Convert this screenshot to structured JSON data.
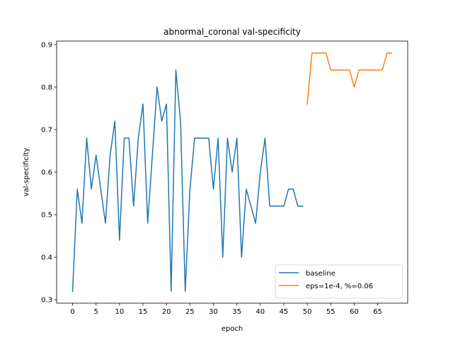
{
  "chart_data": {
    "type": "line",
    "title": "abnormal_coronal val-specificity",
    "xlabel": "epoch",
    "ylabel": "val-specificity",
    "xlim": [
      -3.4,
      71.4
    ],
    "ylim": [
      0.292,
      0.908
    ],
    "xticks": [
      0,
      5,
      10,
      15,
      20,
      25,
      30,
      35,
      40,
      45,
      50,
      55,
      60,
      65
    ],
    "yticks": [
      0.3,
      0.4,
      0.5,
      0.6,
      0.7,
      0.8,
      0.9
    ],
    "ytick_labels": [
      "0.3",
      "0.4",
      "0.5",
      "0.6",
      "0.7",
      "0.8",
      "0.9"
    ],
    "grid": false,
    "legend_position": "lower right",
    "series": [
      {
        "name": "baseline",
        "color": "#1f77b4",
        "x": [
          0,
          1,
          2,
          3,
          4,
          5,
          6,
          7,
          8,
          9,
          10,
          11,
          12,
          13,
          14,
          15,
          16,
          17,
          18,
          19,
          20,
          21,
          22,
          23,
          24,
          25,
          26,
          27,
          28,
          29,
          30,
          31,
          32,
          33,
          34,
          35,
          36,
          37,
          38,
          39,
          40,
          41,
          42,
          43,
          44,
          45,
          46,
          47,
          48,
          49
        ],
        "y": [
          0.32,
          0.56,
          0.48,
          0.68,
          0.56,
          0.64,
          0.56,
          0.48,
          0.64,
          0.72,
          0.44,
          0.68,
          0.68,
          0.52,
          0.68,
          0.76,
          0.48,
          0.64,
          0.8,
          0.72,
          0.76,
          0.32,
          0.84,
          0.72,
          0.32,
          0.56,
          0.68,
          0.68,
          0.68,
          0.68,
          0.56,
          0.68,
          0.4,
          0.68,
          0.6,
          0.68,
          0.4,
          0.56,
          0.52,
          0.48,
          0.6,
          0.68,
          0.52,
          0.52,
          0.52,
          0.52,
          0.56,
          0.56,
          0.52,
          0.52
        ]
      },
      {
        "name": "eps=1e-4, %=0.06",
        "color": "#ff7f0e",
        "x": [
          50,
          51,
          52,
          53,
          54,
          55,
          56,
          57,
          58,
          59,
          60,
          61,
          62,
          63,
          64,
          65,
          66,
          67,
          68
        ],
        "y": [
          0.76,
          0.88,
          0.88,
          0.88,
          0.88,
          0.84,
          0.84,
          0.84,
          0.84,
          0.84,
          0.8,
          0.84,
          0.84,
          0.84,
          0.84,
          0.84,
          0.84,
          0.88,
          0.88
        ]
      }
    ]
  }
}
